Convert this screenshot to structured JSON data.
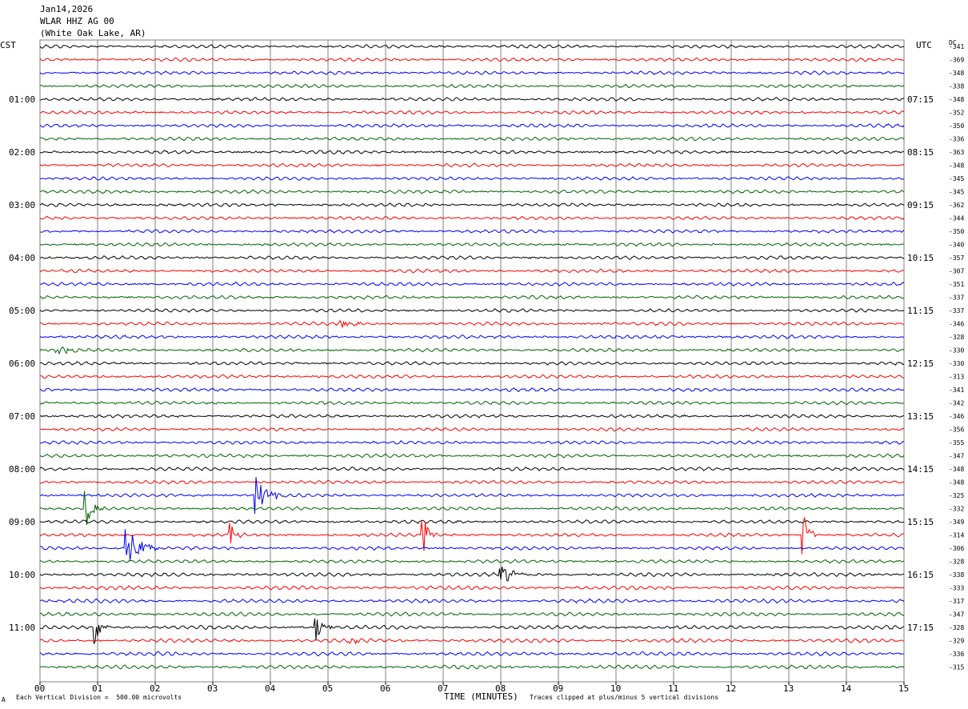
{
  "header": {
    "date": "Jan14,2026",
    "station": "WLAR HHZ AG 00",
    "location": "(White Oak Lake, AR)"
  },
  "labels": {
    "left_timezone": "CST",
    "right_timezone": "UTC",
    "dc_label": "DC"
  },
  "footer": {
    "scale_note": "Each Vertical Division =  500.00 microvolts",
    "clip_note": "Traces clipped at plus/minus 5 vertical divisions",
    "corner_mark": "A"
  },
  "chart_data": {
    "type": "line",
    "title": "",
    "xlabel": "TIME (MINUTES)",
    "ylabel": "",
    "xlim": [
      0,
      15
    ],
    "x_ticks": [
      "00",
      "01",
      "02",
      "03",
      "04",
      "05",
      "06",
      "07",
      "08",
      "09",
      "10",
      "11",
      "12",
      "13",
      "14",
      "15"
    ],
    "grid": true,
    "trace_colors": [
      "#000000",
      "#ff0000",
      "#0000ff",
      "#006400"
    ],
    "left_hour_labels": [
      "01:00",
      "02:00",
      "03:00",
      "04:00",
      "05:00",
      "06:00",
      "07:00",
      "08:00",
      "09:00",
      "10:00",
      "11:00"
    ],
    "right_hour_labels": [
      "07:15",
      "08:15",
      "09:15",
      "10:15",
      "11:15",
      "12:15",
      "13:15",
      "14:15",
      "15:15",
      "16:15",
      "17:15"
    ],
    "trace_dc_offsets": [
      -341,
      -369,
      -348,
      -338,
      -348,
      -352,
      -350,
      -336,
      -363,
      -348,
      -345,
      -345,
      -362,
      -344,
      -350,
      -340,
      -357,
      -307,
      -351,
      -337,
      -337,
      -346,
      -328,
      -330,
      -330,
      -313,
      -341,
      -342,
      -346,
      -356,
      -355,
      -347,
      -348,
      -348,
      -325,
      -332,
      -349,
      -314,
      -306,
      -328,
      -338,
      -333,
      -317,
      -347,
      -328,
      -329,
      -336,
      -315
    ],
    "events": [
      {
        "trace": 35,
        "minute": 0.8,
        "amp": 3.0,
        "dur": 0.3
      },
      {
        "trace": 34,
        "minute": 3.75,
        "amp": 3.0,
        "dur": 0.5
      },
      {
        "trace": 38,
        "minute": 1.5,
        "amp": 3.5,
        "dur": 0.6
      },
      {
        "trace": 37,
        "minute": 3.3,
        "amp": 3.0,
        "dur": 0.2
      },
      {
        "trace": 37,
        "minute": 6.65,
        "amp": 3.5,
        "dur": 0.25
      },
      {
        "trace": 37,
        "minute": 13.25,
        "amp": 3.5,
        "dur": 0.25
      },
      {
        "trace": 40,
        "minute": 8.0,
        "amp": 1.2,
        "dur": 0.8
      },
      {
        "trace": 44,
        "minute": 0.95,
        "amp": 3.5,
        "dur": 0.25
      },
      {
        "trace": 44,
        "minute": 4.8,
        "amp": 2.2,
        "dur": 0.3
      },
      {
        "trace": 45,
        "minute": 5.4,
        "amp": 0.8,
        "dur": 0.3
      },
      {
        "trace": 21,
        "minute": 5.2,
        "amp": 0.8,
        "dur": 0.5
      },
      {
        "trace": 23,
        "minute": 0.3,
        "amp": 0.6,
        "dur": 0.8
      }
    ]
  }
}
